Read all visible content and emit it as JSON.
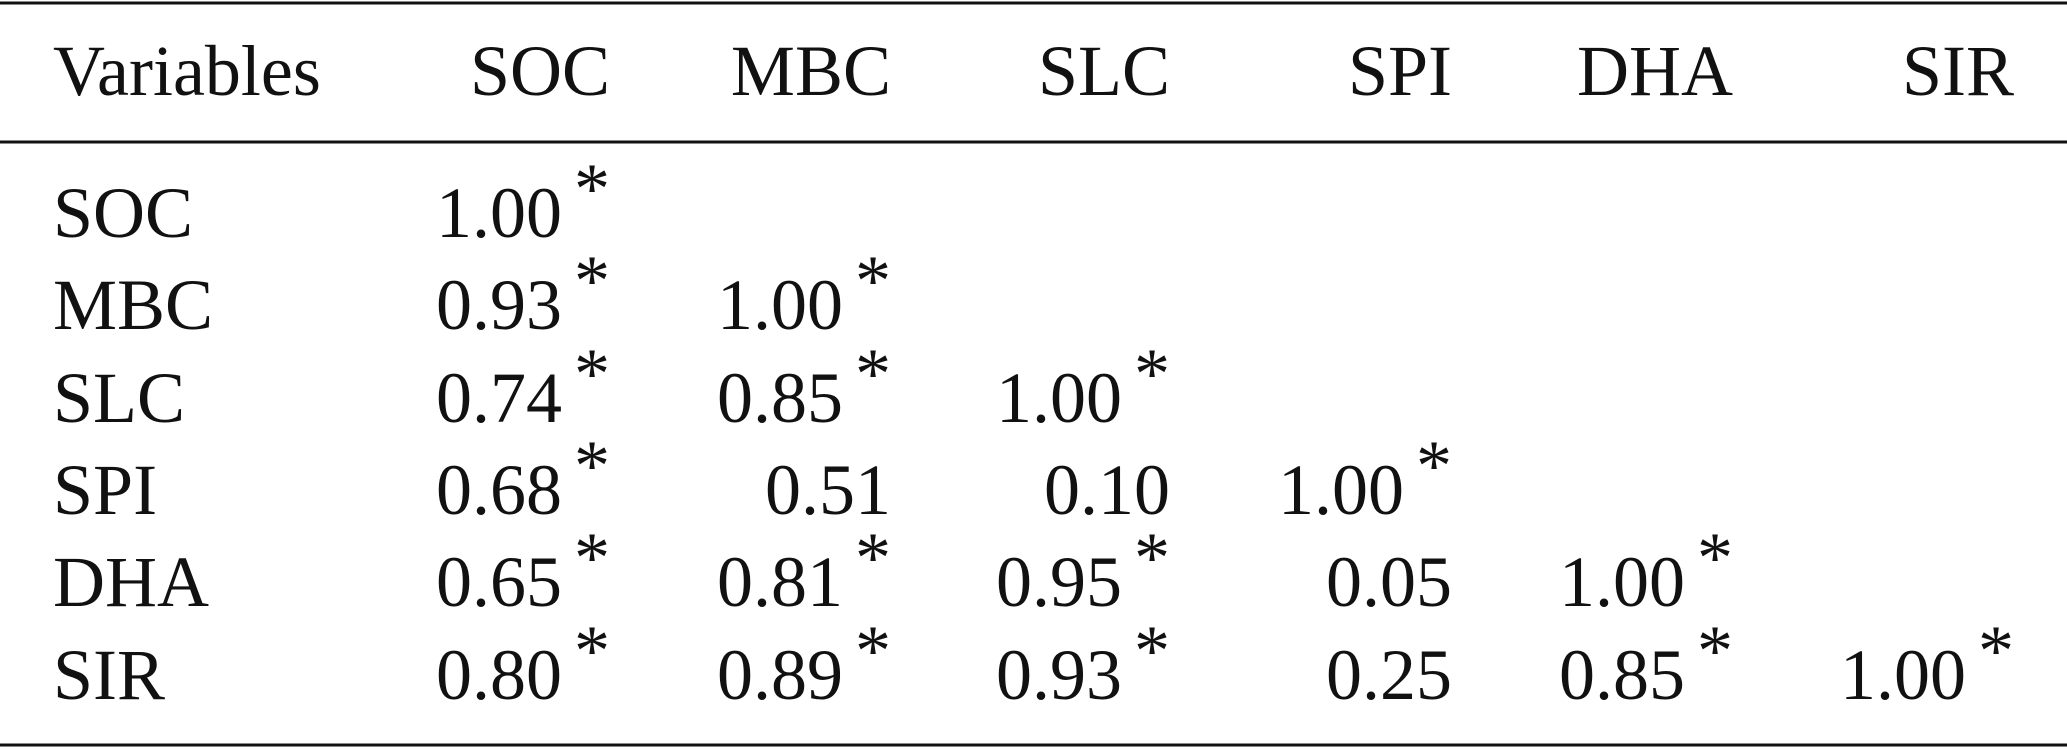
{
  "table": {
    "headers": [
      "Variables",
      "SOC",
      "MBC",
      "SLC",
      "SPI",
      "DHA",
      "SIR"
    ],
    "rows": [
      {
        "label": "SOC",
        "cells": [
          {
            "value": "1.00",
            "mark": "*"
          }
        ]
      },
      {
        "label": "MBC",
        "cells": [
          {
            "value": "0.93",
            "mark": "*"
          },
          {
            "value": "1.00",
            "mark": "*"
          }
        ]
      },
      {
        "label": "SLC",
        "cells": [
          {
            "value": "0.74",
            "mark": "*"
          },
          {
            "value": "0.85",
            "mark": "*"
          },
          {
            "value": "1.00",
            "mark": "*"
          }
        ]
      },
      {
        "label": "SPI",
        "cells": [
          {
            "value": "0.68",
            "mark": "*"
          },
          {
            "value": "0.51"
          },
          {
            "value": "0.10"
          },
          {
            "value": "1.00",
            "mark": "*"
          }
        ]
      },
      {
        "label": "DHA",
        "cells": [
          {
            "value": "0.65",
            "mark": "*"
          },
          {
            "value": "0.81",
            "mark": "*"
          },
          {
            "value": "0.95",
            "mark": "*"
          },
          {
            "value": "0.05"
          },
          {
            "value": "1.00",
            "mark": "*"
          }
        ]
      },
      {
        "label": "SIR",
        "cells": [
          {
            "value": "0.80",
            "mark": "*"
          },
          {
            "value": "0.89",
            "mark": "*"
          },
          {
            "value": "0.93",
            "mark": "*"
          },
          {
            "value": "0.25"
          },
          {
            "value": "0.85",
            "mark": "*"
          },
          {
            "value": "1.00",
            "mark": "*"
          }
        ]
      }
    ]
  }
}
